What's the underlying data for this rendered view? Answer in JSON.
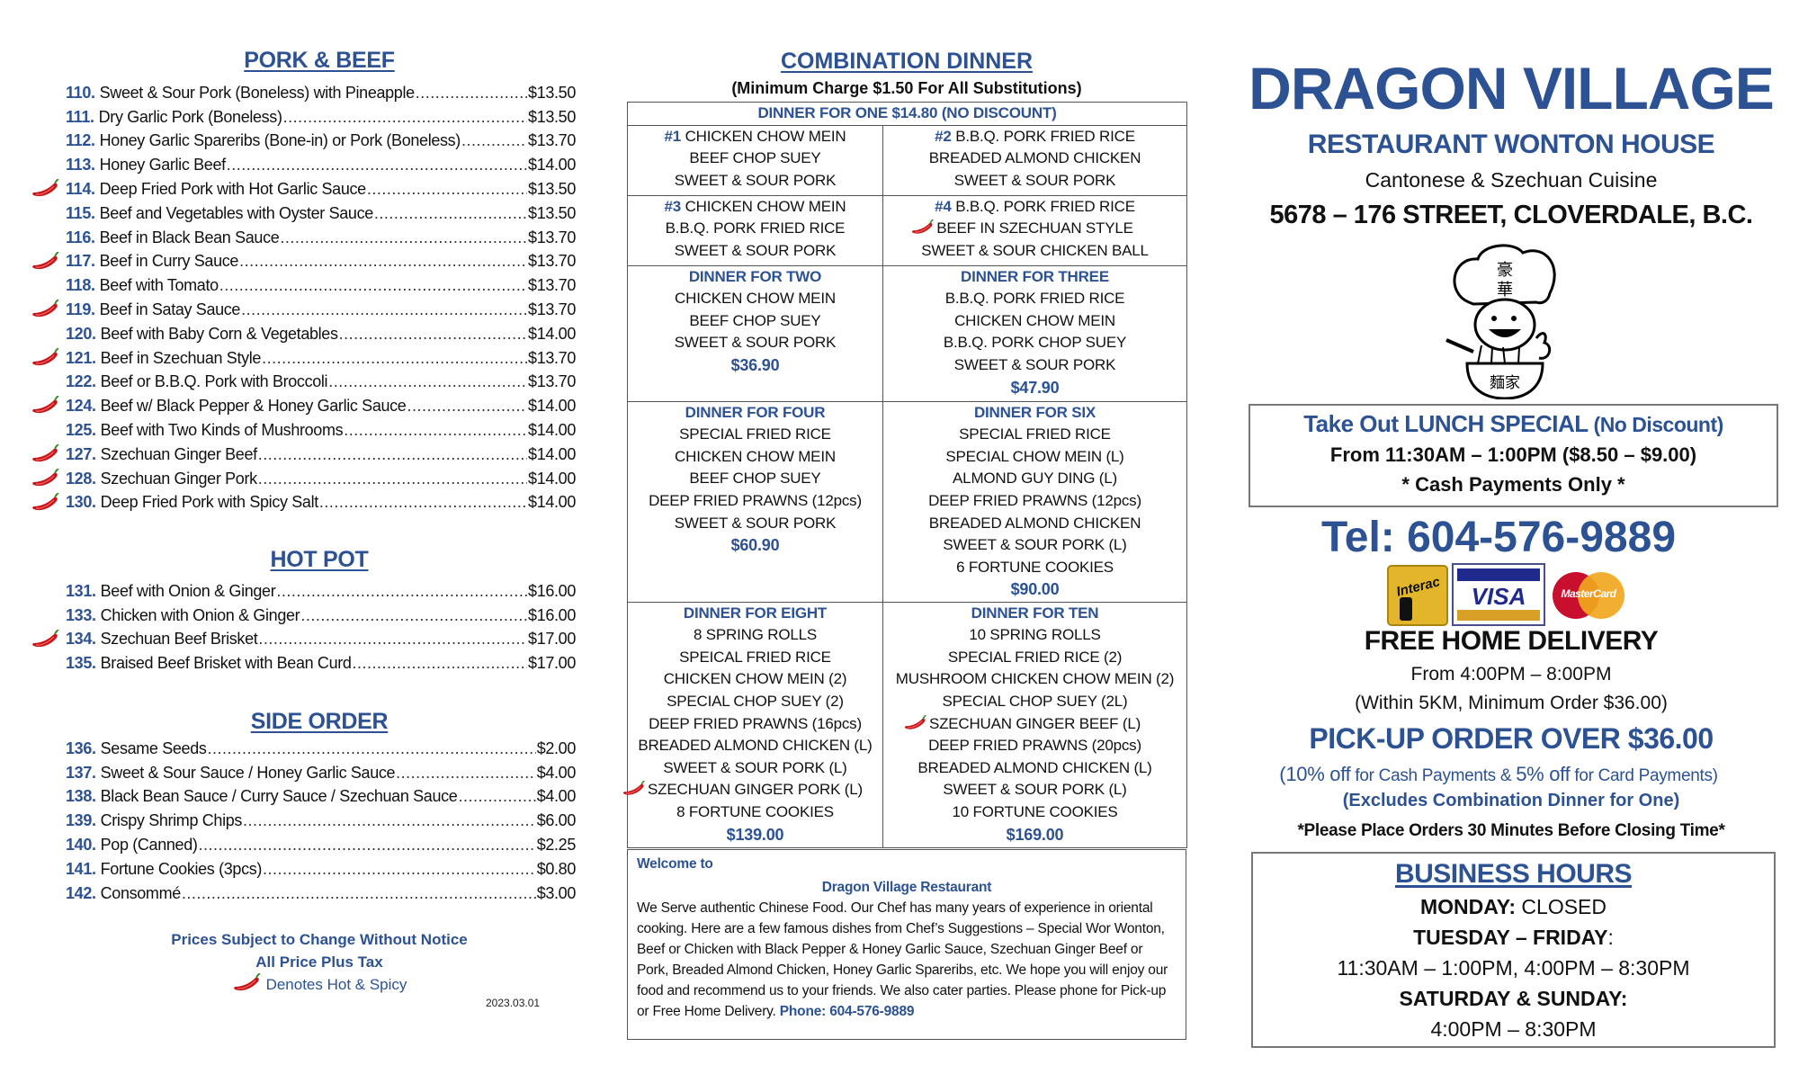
{
  "colors": {
    "accent_blue": "#2c5294",
    "chili_red": "#c4161c",
    "text": "#111111"
  },
  "left": {
    "pork_beef": {
      "title": "PORK & BEEF",
      "items": [
        {
          "num": "110.",
          "name": "Sweet & Sour Pork (Boneless) with Pineapple",
          "price": "$13.50",
          "spicy": false
        },
        {
          "num": "111.",
          "name": "Dry Garlic Pork (Boneless)",
          "price": "$13.50",
          "spicy": false
        },
        {
          "num": "112.",
          "name": "Honey Garlic Spareribs (Bone-in) or Pork (Boneless)",
          "price": "$13.70",
          "spicy": false
        },
        {
          "num": "113.",
          "name": "Honey Garlic Beef",
          "price": "$14.00",
          "spicy": false
        },
        {
          "num": "114.",
          "name": "Deep Fried Pork with Hot Garlic Sauce",
          "price": "$13.50",
          "spicy": true
        },
        {
          "num": "115.",
          "name": "Beef and Vegetables with Oyster Sauce",
          "price": "$13.50",
          "spicy": false
        },
        {
          "num": "116.",
          "name": "Beef in Black Bean Sauce",
          "price": "$13.70",
          "spicy": false
        },
        {
          "num": "117.",
          "name": "Beef in Curry Sauce",
          "price": "$13.70",
          "spicy": true
        },
        {
          "num": "118.",
          "name": "Beef with Tomato",
          "price": "$13.70",
          "spicy": false
        },
        {
          "num": "119.",
          "name": "Beef in Satay Sauce",
          "price": "$13.70",
          "spicy": true
        },
        {
          "num": "120.",
          "name": "Beef with Baby Corn & Vegetables",
          "price": "$14.00",
          "spicy": false
        },
        {
          "num": "121.",
          "name": "Beef in Szechuan Style",
          "price": "$13.70",
          "spicy": true
        },
        {
          "num": "122.",
          "name": "Beef or B.B.Q. Pork with Broccoli",
          "price": "$13.70",
          "spicy": false
        },
        {
          "num": "124.",
          "name": "Beef w/ Black Pepper & Honey Garlic Sauce",
          "price": "$14.00",
          "spicy": true
        },
        {
          "num": "125.",
          "name": "Beef with Two Kinds of Mushrooms",
          "price": "$14.00",
          "spicy": false
        },
        {
          "num": "127.",
          "name": "Szechuan Ginger Beef",
          "price": "$14.00",
          "spicy": true
        },
        {
          "num": "128.",
          "name": "Szechuan Ginger Pork",
          "price": "$14.00",
          "spicy": true
        },
        {
          "num": "130.",
          "name": "Deep Fried Pork with Spicy Salt",
          "price": "$14.00",
          "spicy": true
        }
      ]
    },
    "hot_pot": {
      "title": "HOT POT",
      "items": [
        {
          "num": "131.",
          "name": "Beef with Onion & Ginger",
          "price": "$16.00",
          "spicy": false
        },
        {
          "num": "133.",
          "name": "Chicken with Onion & Ginger",
          "price": "$16.00",
          "spicy": false
        },
        {
          "num": "134.",
          "name": "Szechuan Beef Brisket",
          "price": "$17.00",
          "spicy": true
        },
        {
          "num": "135.",
          "name": "Braised Beef Brisket with Bean Curd",
          "price": "$17.00",
          "spicy": false
        }
      ]
    },
    "side_order": {
      "title": "SIDE ORDER",
      "items": [
        {
          "num": "136.",
          "name": "Sesame Seeds",
          "price": "$2.00",
          "spicy": false
        },
        {
          "num": "137.",
          "name": "Sweet & Sour Sauce / Honey Garlic Sauce",
          "price": "$4.00",
          "spicy": false
        },
        {
          "num": "138.",
          "name": "Black Bean Sauce / Curry Sauce / Szechuan Sauce",
          "price": "$4.00",
          "spicy": false
        },
        {
          "num": "139.",
          "name": "Crispy Shrimp Chips",
          "price": "$6.00",
          "spicy": false
        },
        {
          "num": "140.",
          "name": "Pop (Canned)",
          "price": "$2.25",
          "spicy": false
        },
        {
          "num": "141.",
          "name": "Fortune Cookies (3pcs)",
          "price": "$0.80",
          "spicy": false
        },
        {
          "num": "142.",
          "name": "Consommé",
          "price": "$3.00",
          "spicy": false
        }
      ]
    },
    "notes": {
      "line1": "Prices Subject to Change Without Notice",
      "line2": "All Price Plus Tax",
      "legend": "Denotes Hot & Spicy"
    },
    "date": "2023.03.01"
  },
  "combination": {
    "title": "COMBINATION DINNER",
    "subtitle": "(Minimum Charge $1.50 For All Substitutions)",
    "dinner_for_one": "DINNER FOR ONE $14.80 (NO DISCOUNT)",
    "rows": [
      [
        {
          "lines": [
            {
              "num": "#1",
              "text": " CHICKEN CHOW MEIN"
            },
            {
              "text": "BEEF CHOP SUEY"
            },
            {
              "text": "SWEET & SOUR PORK"
            }
          ]
        },
        {
          "lines": [
            {
              "num": "#2",
              "text": " B.B.Q. PORK FRIED RICE"
            },
            {
              "text": "BREADED ALMOND CHICKEN"
            },
            {
              "text": "SWEET & SOUR PORK"
            }
          ]
        }
      ],
      [
        {
          "lines": [
            {
              "num": "#3",
              "text": " CHICKEN CHOW MEIN"
            },
            {
              "text": "B.B.Q. PORK FRIED RICE"
            },
            {
              "text": "SWEET & SOUR PORK"
            }
          ]
        },
        {
          "lines": [
            {
              "num": "#4",
              "text": " B.B.Q. PORK FRIED RICE"
            },
            {
              "text": "BEEF IN SZECHUAN STYLE",
              "spicy": true
            },
            {
              "text": "SWEET & SOUR CHICKEN BALL"
            }
          ]
        }
      ],
      [
        {
          "title": "DINNER FOR TWO",
          "lines": [
            {
              "text": "CHICKEN CHOW MEIN"
            },
            {
              "text": "BEEF CHOP SUEY"
            },
            {
              "text": "SWEET & SOUR PORK"
            }
          ],
          "price": "$36.90"
        },
        {
          "title": "DINNER FOR THREE",
          "lines": [
            {
              "text": "B.B.Q. PORK FRIED RICE"
            },
            {
              "text": "CHICKEN CHOW MEIN"
            },
            {
              "text": "B.B.Q. PORK CHOP SUEY"
            },
            {
              "text": "SWEET & SOUR PORK"
            }
          ],
          "price": "$47.90"
        }
      ],
      [
        {
          "title": "DINNER FOR FOUR",
          "lines": [
            {
              "text": "SPECIAL FRIED RICE"
            },
            {
              "text": "CHICKEN CHOW MEIN"
            },
            {
              "text": "BEEF CHOP SUEY"
            },
            {
              "text": "DEEP FRIED PRAWNS (12pcs)"
            },
            {
              "text": "SWEET & SOUR PORK"
            }
          ],
          "price": "$60.90"
        },
        {
          "title": "DINNER FOR SIX",
          "lines": [
            {
              "text": "SPECIAL FRIED RICE"
            },
            {
              "text": "SPECIAL CHOW MEIN (L)"
            },
            {
              "text": "ALMOND GUY DING (L)"
            },
            {
              "text": "DEEP FRIED PRAWNS (12pcs)"
            },
            {
              "text": "BREADED ALMOND CHICKEN"
            },
            {
              "text": "SWEET & SOUR PORK (L)"
            },
            {
              "text": "6 FORTUNE COOKIES"
            }
          ],
          "price": "$90.00"
        }
      ],
      [
        {
          "title": "DINNER FOR EIGHT",
          "lines": [
            {
              "text": "8 SPRING ROLLS"
            },
            {
              "text": "SPEICAL FRIED RICE"
            },
            {
              "text": "CHICKEN CHOW MEIN (2)"
            },
            {
              "text": "SPECIAL CHOP SUEY (2)"
            },
            {
              "text": "DEEP FRIED PRAWNS (16pcs)"
            },
            {
              "text": "BREADED ALMOND CHICKEN (L)"
            },
            {
              "text": "SWEET & SOUR PORK (L)"
            },
            {
              "text": "SZECHUAN GINGER PORK (L)",
              "spicy": true
            },
            {
              "text": "8 FORTUNE COOKIES"
            }
          ],
          "price": "$139.00"
        },
        {
          "title": "DINNER FOR TEN",
          "lines": [
            {
              "text": "10 SPRING ROLLS"
            },
            {
              "text": "SPECIAL FRIED RICE (2)"
            },
            {
              "text": "MUSHROOM CHICKEN CHOW MEIN (2)"
            },
            {
              "text": "SPECIAL CHOP SUEY (2L)"
            },
            {
              "text": "SZECHUAN GINGER BEEF (L)",
              "spicy": true
            },
            {
              "text": "DEEP FRIED PRAWNS (20pcs)"
            },
            {
              "text": "BREADED ALMOND CHICKEN (L)"
            },
            {
              "text": "SWEET & SOUR PORK (L)"
            },
            {
              "text": "10 FORTUNE COOKIES"
            }
          ],
          "price": "$169.00"
        }
      ]
    ],
    "welcome": {
      "heading": "Welcome to",
      "name": "Dragon Village Restaurant",
      "body": "We Serve authentic Chinese Food. Our Chef has many years of experience in oriental cooking. Here are a few famous dishes from Chef’s Suggestions – Special Wor Wonton, Beef or Chicken with Black Pepper & Honey Garlic Sauce, Szechuan Ginger Beef or Pork, Breaded Almond Chicken, Honey Garlic Spareribs, etc. We hope you will enjoy our food and recommend us to your friends. We also cater parties. Please phone for Pick-up or Free Home Delivery. ",
      "phone": "Phone: 604-576-9889"
    }
  },
  "right": {
    "name": "DRAGON VILLAGE",
    "subtitle": "RESTAURANT WONTON HOUSE",
    "cuisine": "Cantonese & Szechuan Cuisine",
    "address": "5678 – 176 STREET, CLOVERDALE, B.C.",
    "logo_text": "豪華麵家",
    "lunch": {
      "title": "Take Out LUNCH SPECIAL",
      "title_note": " (No Discount)",
      "hours": "From 11:30AM – 1:00PM ($8.50 – $9.00)",
      "note": "* Cash Payments Only *"
    },
    "tel": "Tel: 604-576-9889",
    "cards": {
      "interac": "Interac",
      "visa": "VISA",
      "mastercard": "MasterCard"
    },
    "delivery": {
      "title": "FREE HOME DELIVERY",
      "hours": "From 4:00PM – 8:00PM",
      "terms": "(Within 5KM, Minimum Order $36.00)"
    },
    "pickup": {
      "title": "PICK-UP ORDER OVER $36.00",
      "disc1_pct": "(10% off",
      "disc1_txt": " for Cash Payments & ",
      "disc2_pct": "5% off",
      "disc2_txt": " for Card Payments)",
      "exclude": "(Excludes Combination Dinner for One)",
      "notice": "*Please Place Orders 30 Minutes Before Closing Time*"
    },
    "hours": {
      "title": "BUSINESS HOURS",
      "mon_label": "MONDAY:",
      "mon_val": " CLOSED",
      "tf_label": "TUESDAY – FRIDAY",
      "tf_colon": ":",
      "tf_val": "11:30AM – 1:00PM, 4:00PM – 8:30PM",
      "ws_label": "SATURDAY & SUNDAY:",
      "ws_val": "4:00PM – 8:30PM"
    }
  }
}
